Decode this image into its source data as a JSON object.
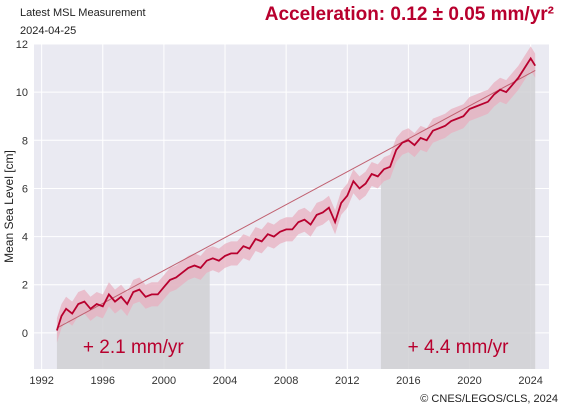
{
  "header": {
    "title": "Latest MSL Measurement",
    "date": "2024-04-25",
    "acceleration": "Acceleration: 0.12 ± 0.05 mm/yr²"
  },
  "credit": "© CNES/LEGOS/CLS, 2024",
  "colors": {
    "series": "#b8002e",
    "band": "#e8b0c0",
    "plot_bg": "#eaeaf2",
    "shade": "#d0d0d4",
    "trend": "#c06070"
  },
  "chart_data": {
    "type": "line",
    "ylabel": "Mean Sea Level [cm]",
    "xlim": [
      1991.5,
      2025.2
    ],
    "ylim": [
      -1.5,
      12
    ],
    "x_ticks": [
      1992,
      1996,
      2000,
      2004,
      2008,
      2012,
      2016,
      2020,
      2024
    ],
    "y_ticks": [
      0,
      2,
      4,
      6,
      8,
      10,
      12
    ],
    "grid": true,
    "uncertainty_band_cm": 0.5,
    "series": [
      {
        "x": [
          1993.0,
          1993.3,
          1993.6,
          1994.0,
          1994.4,
          1994.8,
          1995.2,
          1995.6,
          1996.0,
          1996.4,
          1996.8,
          1997.2,
          1997.6,
          1998.0,
          1998.4,
          1998.8,
          1999.2,
          1999.6,
          2000.0,
          2000.4,
          2000.8,
          2001.2,
          2001.6,
          2002.0,
          2002.4,
          2002.8,
          2003.2,
          2003.6,
          2004.0,
          2004.4,
          2004.8,
          2005.2,
          2005.6,
          2006.0,
          2006.4,
          2006.8,
          2007.2,
          2007.6,
          2008.0,
          2008.4,
          2008.8,
          2009.2,
          2009.6,
          2010.0,
          2010.4,
          2010.8,
          2011.2,
          2011.6,
          2012.0,
          2012.4,
          2012.8,
          2013.2,
          2013.6,
          2014.0,
          2014.4,
          2014.8,
          2015.2,
          2015.6,
          2016.0,
          2016.4,
          2016.8,
          2017.2,
          2017.6,
          2018.0,
          2018.4,
          2018.8,
          2019.2,
          2019.6,
          2020.0,
          2020.4,
          2020.8,
          2021.2,
          2021.6,
          2022.0,
          2022.4,
          2022.8,
          2023.2,
          2023.6,
          2024.0,
          2024.3
        ],
        "y": [
          0.1,
          0.7,
          1.0,
          0.8,
          1.2,
          1.3,
          1.0,
          1.2,
          1.1,
          1.6,
          1.3,
          1.5,
          1.2,
          1.7,
          1.8,
          1.5,
          1.6,
          1.6,
          1.9,
          2.2,
          2.3,
          2.5,
          2.7,
          2.8,
          2.7,
          3.0,
          3.1,
          3.0,
          3.2,
          3.3,
          3.3,
          3.6,
          3.5,
          3.9,
          3.8,
          4.1,
          4.0,
          4.2,
          4.3,
          4.3,
          4.6,
          4.7,
          4.5,
          4.9,
          5.0,
          5.2,
          4.6,
          5.4,
          5.7,
          6.3,
          6.0,
          6.2,
          6.6,
          6.5,
          6.8,
          6.9,
          7.6,
          7.9,
          8.0,
          7.8,
          8.1,
          8.0,
          8.4,
          8.5,
          8.6,
          8.8,
          8.9,
          9.0,
          9.3,
          9.4,
          9.5,
          9.6,
          9.9,
          10.1,
          10.0,
          10.3,
          10.6,
          11.0,
          11.4,
          11.1
        ]
      }
    ],
    "trend_line": {
      "x": [
        1993.0,
        2024.3
      ],
      "y": [
        0.2,
        10.9
      ]
    },
    "shaded_regions": [
      {
        "from": 1993.0,
        "to": 2003.0,
        "label": "+ 2.1 mm/yr"
      },
      {
        "from": 2014.2,
        "to": 2024.3,
        "label": "+ 4.4 mm/yr"
      }
    ]
  }
}
